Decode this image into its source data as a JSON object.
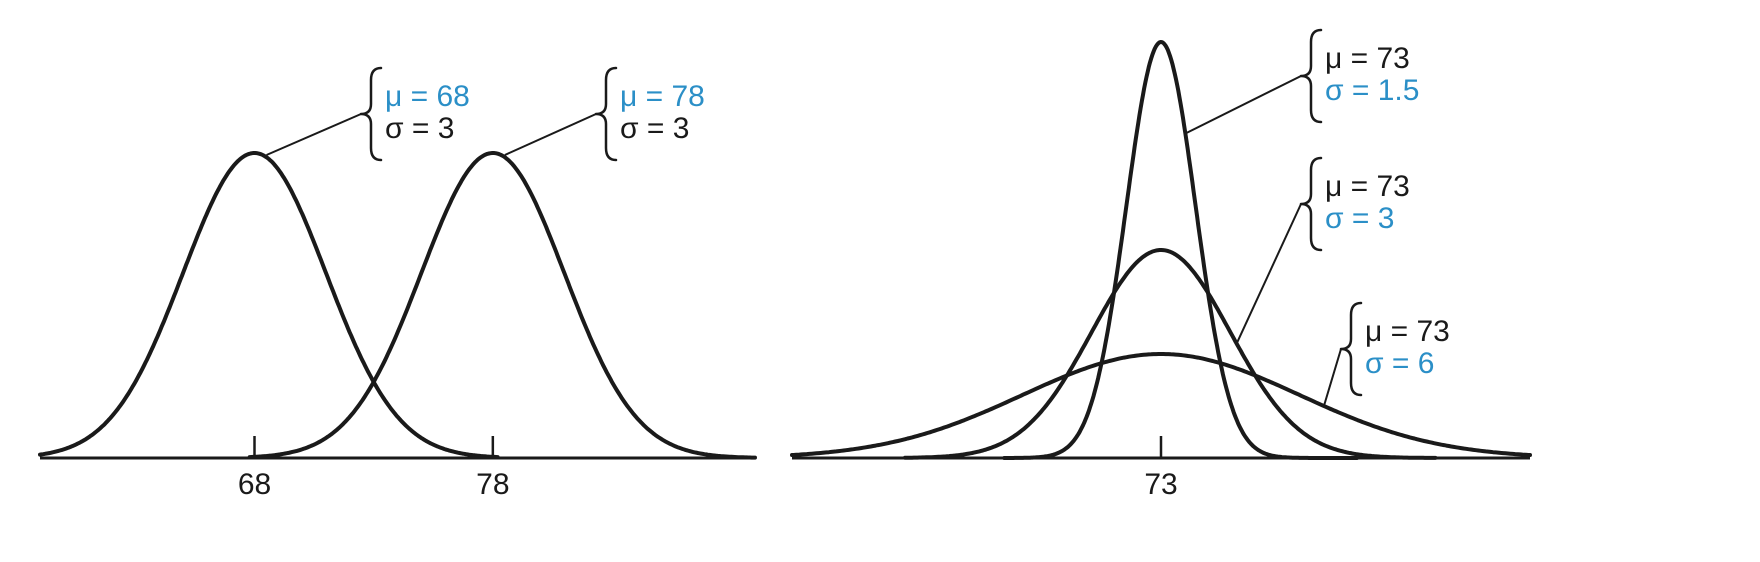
{
  "colors": {
    "curve": "#1a1a1a",
    "text": "#1a1a1a",
    "highlight": "#2b8fc7"
  },
  "chart_data": [
    {
      "type": "line",
      "title": "",
      "xlabel": "",
      "ylabel": "",
      "grid": false,
      "xlim": [
        59,
        89
      ],
      "tick_labels": [
        "68",
        "78"
      ],
      "ticks": [
        68,
        78
      ],
      "series": [
        {
          "mu": 68,
          "sigma": 3,
          "mu_text": "μ = 68",
          "sigma_text": "σ = 3",
          "highlight": "mu"
        },
        {
          "mu": 78,
          "sigma": 3,
          "mu_text": "μ = 78",
          "sigma_text": "σ = 3",
          "highlight": "mu"
        }
      ]
    },
    {
      "type": "line",
      "title": "",
      "xlabel": "",
      "ylabel": "",
      "grid": false,
      "xlim": [
        57,
        89
      ],
      "tick_labels": [
        "73"
      ],
      "ticks": [
        73
      ],
      "series": [
        {
          "mu": 73,
          "sigma": 1.5,
          "mu_text": "μ = 73",
          "sigma_text": "σ = 1.5",
          "highlight": "sigma"
        },
        {
          "mu": 73,
          "sigma": 3,
          "mu_text": "μ = 73",
          "sigma_text": "σ = 3",
          "highlight": "sigma"
        },
        {
          "mu": 73,
          "sigma": 6,
          "mu_text": "μ = 73",
          "sigma_text": "σ = 6",
          "highlight": "sigma"
        }
      ]
    }
  ]
}
